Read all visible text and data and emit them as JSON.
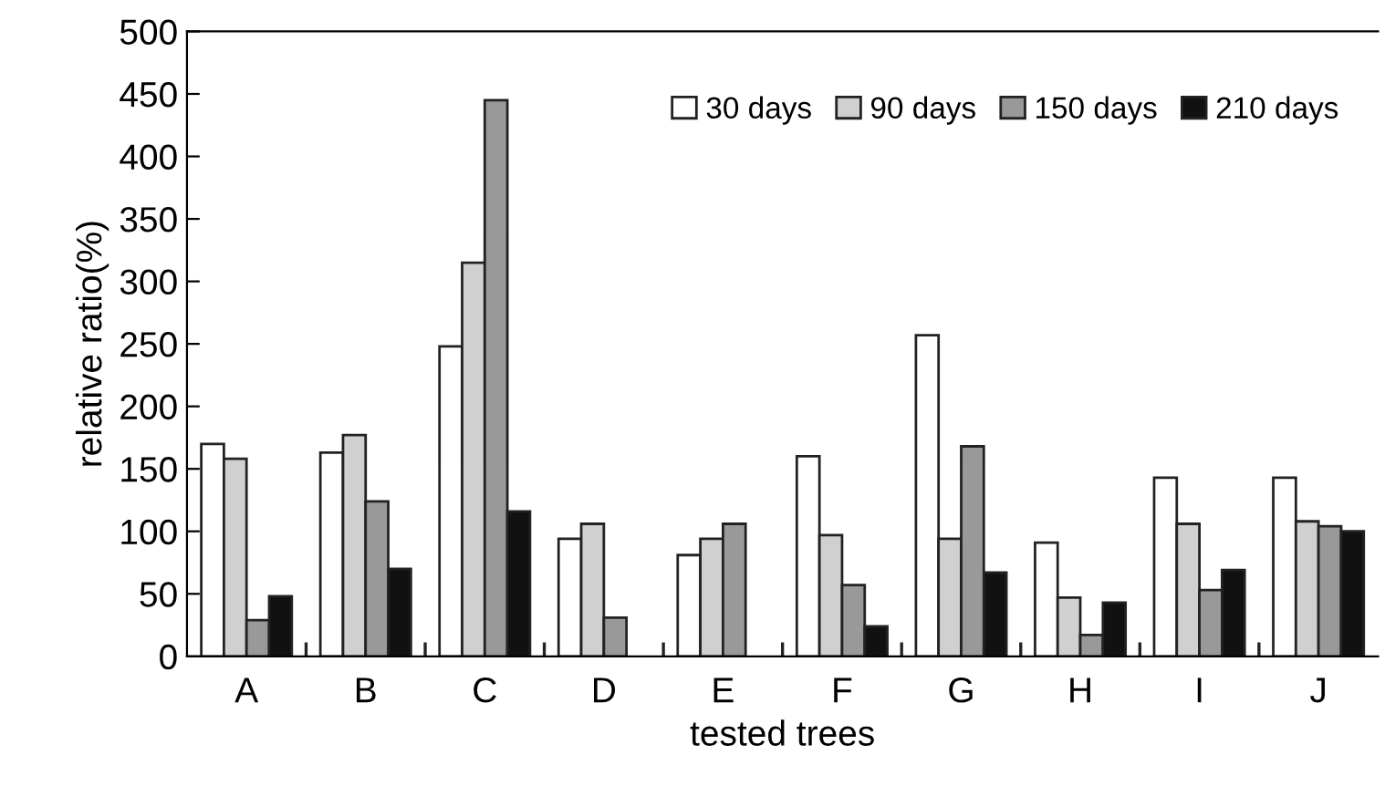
{
  "chart_data": {
    "type": "bar",
    "xlabel": "tested trees",
    "ylabel": "relative ratio(%)",
    "categories": [
      "A",
      "B",
      "C",
      "D",
      "E",
      "F",
      "G",
      "H",
      "I",
      "J"
    ],
    "series": [
      {
        "name": "30 days",
        "color": "#ffffff",
        "values": [
          170,
          163,
          248,
          94,
          81,
          160,
          257,
          91,
          143,
          143
        ]
      },
      {
        "name": "90 days",
        "color": "#d0d0d0",
        "values": [
          158,
          177,
          315,
          106,
          94,
          97,
          94,
          47,
          106,
          108
        ]
      },
      {
        "name": "150 days",
        "color": "#999999",
        "values": [
          29,
          124,
          445,
          31,
          106,
          57,
          168,
          17,
          53,
          104
        ]
      },
      {
        "name": "210 days",
        "color": "#111111",
        "values": [
          48,
          70,
          116,
          null,
          null,
          24,
          67,
          43,
          69,
          100
        ]
      }
    ],
    "ylim": [
      0,
      500
    ],
    "yticks": [
      0,
      50,
      100,
      150,
      200,
      250,
      300,
      350,
      400,
      450,
      500
    ],
    "grid": false,
    "legend": "top right"
  }
}
